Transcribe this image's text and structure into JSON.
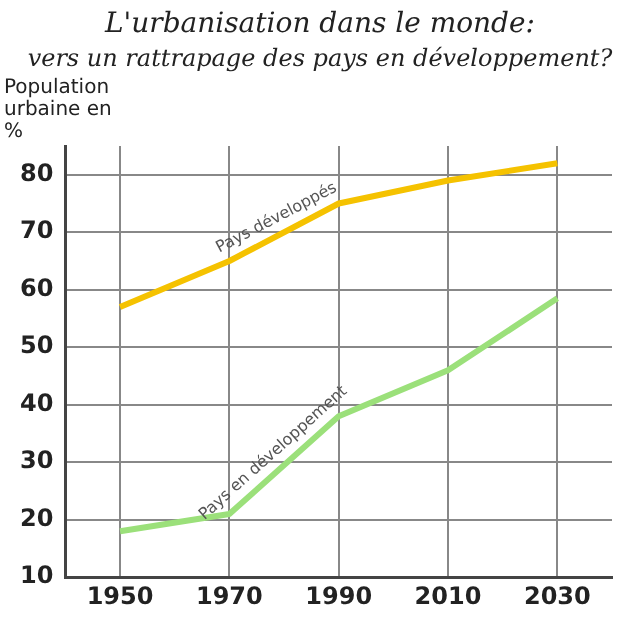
{
  "chart_data": {
    "type": "line",
    "title": "L'urbanisation dans le monde:",
    "subtitle": "vers un rattrapage des pays en développement?",
    "ylabel": "Population urbaine en %",
    "categories": [
      "1950",
      "1970",
      "1990",
      "2010",
      "2030"
    ],
    "series": [
      {
        "name": "Pays développés",
        "color": "#f5c200",
        "values": [
          57,
          65,
          75,
          79,
          82
        ]
      },
      {
        "name": "Pays en développement",
        "color": "#9be07a",
        "values": [
          18,
          21,
          38,
          46,
          58.5
        ]
      }
    ],
    "ylim": [
      10,
      85
    ],
    "yticks": [
      10,
      20,
      30,
      40,
      50,
      60,
      70,
      80
    ],
    "grid": true,
    "line_style": "solid",
    "legend": false
  }
}
